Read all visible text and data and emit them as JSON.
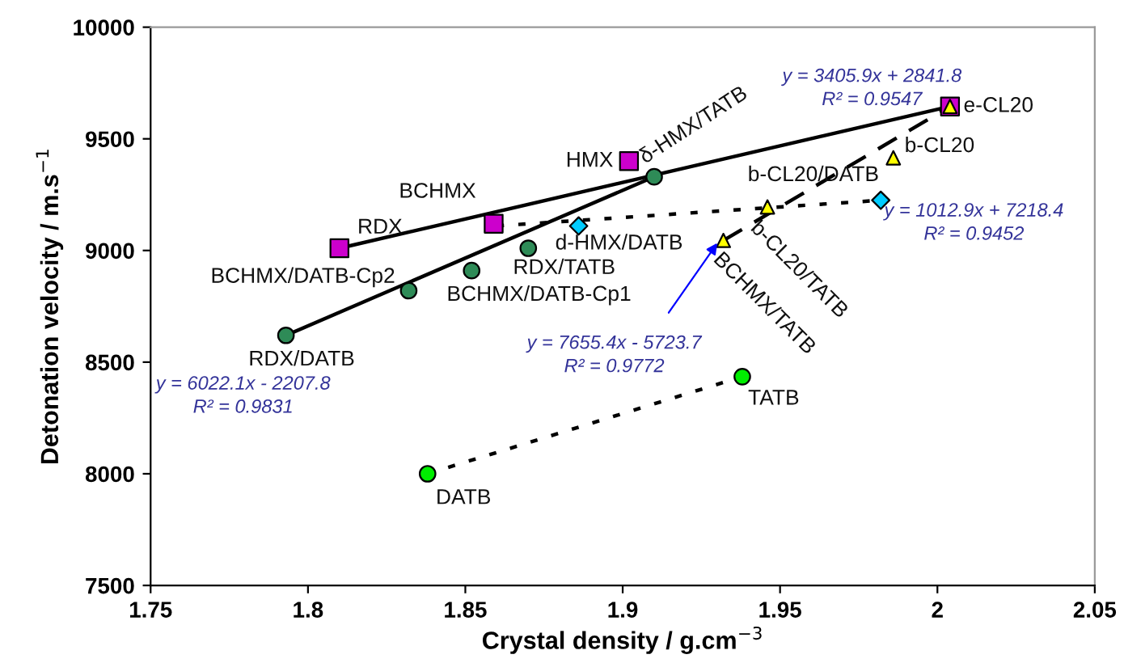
{
  "chart_data": {
    "type": "scatter",
    "xlabel": "Crystal density / g.cm$^{−3}$",
    "ylabel": "Detonation velocity / m.s$^{−1}$",
    "xlim": [
      1.75,
      2.05
    ],
    "xticks": [
      1.75,
      1.8,
      1.85,
      1.9,
      1.95,
      2,
      2.05
    ],
    "ylim": [
      7500,
      10000
    ],
    "yticks": [
      7500,
      8000,
      8500,
      9000,
      9500,
      10000
    ],
    "grid": false,
    "legend": false,
    "series": [
      {
        "type": "line",
        "line_style": "solid",
        "marker": "none",
        "color": "#000000",
        "x": [
          1.81,
          2.004
        ],
        "values": [
          9010,
          9645
        ]
      },
      {
        "type": "line",
        "line_style": "solid",
        "marker": "none",
        "color": "#000000",
        "x": [
          1.793,
          1.91
        ],
        "values": [
          8620,
          9330
        ]
      },
      {
        "type": "line",
        "line_style": "dotted",
        "marker": "none",
        "color": "#000000",
        "x": [
          1.86,
          1.982
        ],
        "values": [
          9110,
          9225
        ]
      },
      {
        "type": "line",
        "line_style": "dashed",
        "marker": "none",
        "color": "#000000",
        "x": [
          1.932,
          2.004
        ],
        "values": [
          9045,
          9645
        ]
      },
      {
        "type": "line",
        "line_style": "dotted",
        "marker": "none",
        "color": "#000000",
        "x": [
          1.838,
          1.938
        ],
        "values": [
          8000,
          8435
        ]
      },
      {
        "marker": "square",
        "color": "#cc00cc",
        "x": [
          1.81,
          1.859,
          1.902,
          2.004
        ],
        "values": [
          9010,
          9120,
          9400,
          9645
        ]
      },
      {
        "marker": "circle",
        "color": "#2e8b57",
        "x": [
          1.793,
          1.832,
          1.852,
          1.87,
          1.91
        ],
        "values": [
          8620,
          8820,
          8910,
          9010,
          9330
        ]
      },
      {
        "marker": "diamond",
        "color": "#00ccff",
        "x": [
          1.886,
          1.982
        ],
        "values": [
          9110,
          9225
        ]
      },
      {
        "marker": "circle",
        "color": "#00ee00",
        "x": [
          1.838,
          1.938
        ],
        "values": [
          8000,
          8435
        ]
      },
      {
        "marker": "triangle",
        "color": "#ffff00",
        "x": [
          1.932,
          1.946,
          1.986,
          2.004
        ],
        "values": [
          9045,
          9195,
          9415,
          9645
        ]
      }
    ],
    "annotations": [
      {
        "text": "RDX",
        "x": 1.81,
        "y": 9010
      },
      {
        "text": "BCHMX",
        "x": 1.859,
        "y": 9120
      },
      {
        "text": "HMX",
        "x": 1.902,
        "y": 9400
      },
      {
        "text": "δ-HMX/TATB",
        "x": 1.91,
        "y": 9330
      },
      {
        "text": "d-HMX/DATB",
        "x": 1.886,
        "y": 9110
      },
      {
        "text": "RDX/TATB",
        "x": 1.87,
        "y": 9010
      },
      {
        "text": "BCHMX/DATB-Cp1",
        "x": 1.852,
        "y": 8910
      },
      {
        "text": "BCHMX/DATB-Cp2",
        "x": 1.832,
        "y": 8820
      },
      {
        "text": "RDX/DATB",
        "x": 1.793,
        "y": 8620
      },
      {
        "text": "DATB",
        "x": 1.838,
        "y": 8000
      },
      {
        "text": "TATB",
        "x": 1.938,
        "y": 8435
      },
      {
        "text": "e-CL20",
        "x": 2.004,
        "y": 9645
      },
      {
        "text": "b-CL20",
        "x": 1.986,
        "y": 9415
      },
      {
        "text": "b-CL20/DATB",
        "x": 1.982,
        "y": 9225
      },
      {
        "text": "b-CL20/TATB",
        "x": 1.946,
        "y": 9195
      },
      {
        "text": "BCHMX/TATB",
        "x": 1.932,
        "y": 9045
      },
      "y = 3405.9x + 2841.8\nR² = 0.9547",
      "y = 6022.1x - 2207.8\nR² = 0.9831",
      "y = 1012.9x + 7218.4\nR² = 0.9452",
      "y = 7655.4x - 5723.7\nR² = 0.9772"
    ]
  }
}
